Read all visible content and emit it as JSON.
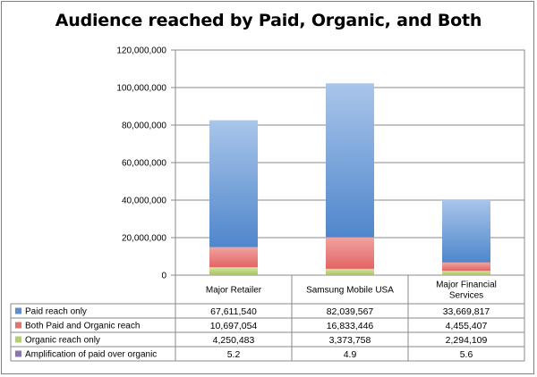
{
  "chart_data": {
    "type": "bar",
    "stacked": true,
    "title": "Audience reached by Paid, Organic, and Both",
    "categories": [
      [
        "Major Retailer"
      ],
      [
        "Samsung Mobile USA"
      ],
      [
        "Major Financial",
        "Services"
      ]
    ],
    "ylim": [
      0,
      120000000
    ],
    "yticks": [
      0,
      20000000,
      40000000,
      60000000,
      80000000,
      100000000,
      120000000
    ],
    "ytick_labels": [
      "0",
      "20,000,000",
      "40,000,000",
      "60,000,000",
      "80,000,000",
      "100,000,000",
      "120,000,000"
    ],
    "grid": true,
    "series": [
      {
        "name": "Organic reach only",
        "color": "#b5cf6b",
        "values": [
          4250483,
          3373758,
          2294109
        ],
        "labels": [
          "4,250,483",
          "3,373,758",
          "2,294,109"
        ]
      },
      {
        "name": "Both Paid and Organic reach",
        "color": "#e5726f",
        "values": [
          10697054,
          16833446,
          4455407
        ],
        "labels": [
          "10,697,054",
          "16,833,446",
          "4,455,407"
        ]
      },
      {
        "name": "Paid reach only",
        "color": "#5b8fd0",
        "values": [
          67611540,
          82039567,
          33669817
        ],
        "labels": [
          "67,611,540",
          "82,039,567",
          "33,669,817"
        ]
      }
    ],
    "table_rows": [
      {
        "name": "Paid reach only",
        "color": "#5b8fd0",
        "cells": [
          "67,611,540",
          "82,039,567",
          "33,669,817"
        ]
      },
      {
        "name": "Both Paid and Organic reach",
        "color": "#e5726f",
        "cells": [
          "10,697,054",
          "16,833,446",
          "4,455,407"
        ]
      },
      {
        "name": "Organic reach only",
        "color": "#b5cf6b",
        "cells": [
          "4,250,483",
          "3,373,758",
          "2,294,109"
        ]
      },
      {
        "name": "Amplification of paid over organic",
        "color": "#8f74b5",
        "cells": [
          "5.2",
          "4.9",
          "5.6"
        ]
      }
    ]
  }
}
